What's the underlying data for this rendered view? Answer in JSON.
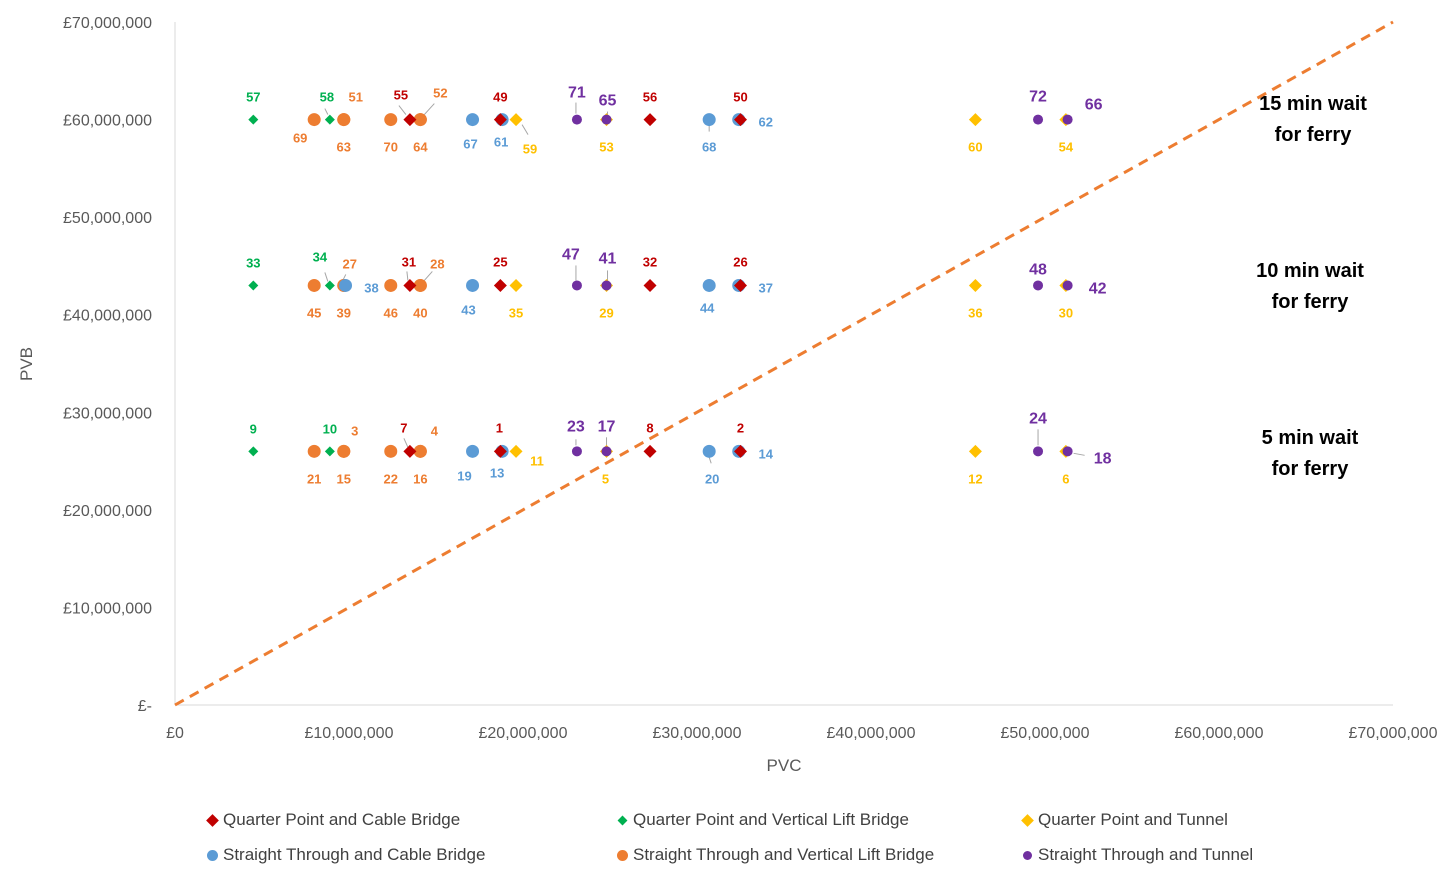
{
  "chart_data": {
    "type": "scatter",
    "title": "",
    "xlabel": "PVC",
    "ylabel": "PVB",
    "xlim": [
      0,
      70000000
    ],
    "ylim": [
      0,
      70000000
    ],
    "x_ticks": [
      "£0",
      "£10,000,000",
      "£20,000,000",
      "£30,000,000",
      "£40,000,000",
      "£50,000,000",
      "£60,000,000",
      "£70,000,000"
    ],
    "y_ticks": [
      "£-",
      "£10,000,000",
      "£20,000,000",
      "£30,000,000",
      "£40,000,000",
      "£50,000,000",
      "£60,000,000",
      "£70,000,000"
    ],
    "grid": false,
    "legend_position": "bottom",
    "reference_line": {
      "style": "dashed",
      "color": "#ED7D31",
      "from": [
        0,
        0
      ],
      "to": [
        70000000,
        70000000
      ]
    },
    "annotations": [
      {
        "text_line1": "15 min wait",
        "text_line2": "for ferry",
        "y": 60000000
      },
      {
        "text_line1": "10 min wait",
        "text_line2": "for ferry",
        "y": 43000000
      },
      {
        "text_line1": "5 min wait",
        "text_line2": "for ferry",
        "y": 26000000
      }
    ],
    "series": [
      {
        "name": "Quarter Point and Cable Bridge",
        "marker": "diamond",
        "color": "#C00000",
        "label_color": "#C00000",
        "points": [
          {
            "label": "55",
            "x": 13500000,
            "y": 60000000
          },
          {
            "label": "49",
            "x": 18700000,
            "y": 60000000
          },
          {
            "label": "56",
            "x": 27300000,
            "y": 60000000
          },
          {
            "label": "50",
            "x": 32500000,
            "y": 60000000
          },
          {
            "label": "31",
            "x": 13500000,
            "y": 43000000
          },
          {
            "label": "25",
            "x": 18700000,
            "y": 43000000
          },
          {
            "label": "32",
            "x": 27300000,
            "y": 43000000
          },
          {
            "label": "26",
            "x": 32500000,
            "y": 43000000
          },
          {
            "label": "7",
            "x": 13500000,
            "y": 26000000
          },
          {
            "label": "1",
            "x": 18700000,
            "y": 26000000
          },
          {
            "label": "8",
            "x": 27300000,
            "y": 26000000
          },
          {
            "label": "2",
            "x": 32500000,
            "y": 26000000
          }
        ]
      },
      {
        "name": "Quarter Point and Vertical Lift Bridge",
        "marker": "diamond-small",
        "color": "#00B050",
        "label_color": "#00B050",
        "points": [
          {
            "label": "57",
            "x": 4500000,
            "y": 60000000
          },
          {
            "label": "58",
            "x": 8900000,
            "y": 60000000
          },
          {
            "label": "33",
            "x": 4500000,
            "y": 43000000
          },
          {
            "label": "34",
            "x": 8900000,
            "y": 43000000
          },
          {
            "label": "9",
            "x": 4500000,
            "y": 26000000
          },
          {
            "label": "10",
            "x": 8900000,
            "y": 26000000
          }
        ]
      },
      {
        "name": "Quarter Point and Tunnel",
        "marker": "diamond",
        "color": "#FFC000",
        "label_color": "#FFC000",
        "points": [
          {
            "label": "59",
            "x": 19600000,
            "y": 60000000
          },
          {
            "label": "53",
            "x": 24800000,
            "y": 60000000
          },
          {
            "label": "60",
            "x": 46000000,
            "y": 60000000
          },
          {
            "label": "54",
            "x": 51200000,
            "y": 60000000
          },
          {
            "label": "35",
            "x": 19600000,
            "y": 43000000
          },
          {
            "label": "29",
            "x": 24800000,
            "y": 43000000
          },
          {
            "label": "36",
            "x": 46000000,
            "y": 43000000
          },
          {
            "label": "30",
            "x": 51200000,
            "y": 43000000
          },
          {
            "label": "11",
            "x": 19600000,
            "y": 26000000
          },
          {
            "label": "5",
            "x": 24800000,
            "y": 26000000
          },
          {
            "label": "12",
            "x": 46000000,
            "y": 26000000
          },
          {
            "label": "6",
            "x": 51200000,
            "y": 26000000
          }
        ]
      },
      {
        "name": "Straight Through and Cable Bridge",
        "marker": "circle",
        "color": "#5B9BD5",
        "label_color": "#5B9BD5",
        "points": [
          {
            "label": "67",
            "x": 17100000,
            "y": 60000000
          },
          {
            "label": "61",
            "x": 18800000,
            "y": 60000000
          },
          {
            "label": "68",
            "x": 30700000,
            "y": 60000000
          },
          {
            "label": "62",
            "x": 32400000,
            "y": 60000000
          },
          {
            "label": "43",
            "x": 17100000,
            "y": 43000000
          },
          {
            "label": "38",
            "x": 9800000,
            "y": 43000000
          },
          {
            "label": "44",
            "x": 30700000,
            "y": 43000000
          },
          {
            "label": "37",
            "x": 32400000,
            "y": 43000000
          },
          {
            "label": "19",
            "x": 17100000,
            "y": 26000000
          },
          {
            "label": "13",
            "x": 18800000,
            "y": 26000000
          },
          {
            "label": "20",
            "x": 30700000,
            "y": 26000000
          },
          {
            "label": "14",
            "x": 32400000,
            "y": 26000000
          }
        ]
      },
      {
        "name": "Straight Through and Vertical Lift Bridge",
        "marker": "circle",
        "color": "#ED7D31",
        "label_color": "#ED7D31",
        "points": [
          {
            "label": "69",
            "x": 8000000,
            "y": 60000000
          },
          {
            "label": "63",
            "x": 9700000,
            "y": 60000000
          },
          {
            "label": "70",
            "x": 12400000,
            "y": 60000000
          },
          {
            "label": "64",
            "x": 14100000,
            "y": 60000000
          },
          {
            "label": "45",
            "x": 8000000,
            "y": 43000000
          },
          {
            "label": "39",
            "x": 9700000,
            "y": 43000000
          },
          {
            "label": "46",
            "x": 12400000,
            "y": 43000000
          },
          {
            "label": "40",
            "x": 14100000,
            "y": 43000000
          },
          {
            "label": "21",
            "x": 8000000,
            "y": 26000000
          },
          {
            "label": "15",
            "x": 9700000,
            "y": 26000000
          },
          {
            "label": "22",
            "x": 12400000,
            "y": 26000000
          },
          {
            "label": "16",
            "x": 14100000,
            "y": 26000000
          },
          {
            "label": "51",
            "x": 9700000,
            "y": 60000000
          },
          {
            "label": "27",
            "x": 9700000,
            "y": 43000000
          },
          {
            "label": "3",
            "x": 9700000,
            "y": 26000000
          },
          {
            "label": "52",
            "x": 14100000,
            "y": 60000000
          },
          {
            "label": "28",
            "x": 14100000,
            "y": 43000000
          },
          {
            "label": "4",
            "x": 14100000,
            "y": 26000000
          }
        ]
      },
      {
        "name": "Straight Through and Tunnel",
        "marker": "circle-small",
        "color": "#7030A0",
        "label_color": "#7030A0",
        "points": [
          {
            "label": "71",
            "x": 23100000,
            "y": 60000000
          },
          {
            "label": "65",
            "x": 24800000,
            "y": 60000000
          },
          {
            "label": "72",
            "x": 49600000,
            "y": 60000000
          },
          {
            "label": "66",
            "x": 51300000,
            "y": 60000000
          },
          {
            "label": "47",
            "x": 23100000,
            "y": 43000000
          },
          {
            "label": "41",
            "x": 24800000,
            "y": 43000000
          },
          {
            "label": "48",
            "x": 49600000,
            "y": 43000000
          },
          {
            "label": "42",
            "x": 51300000,
            "y": 43000000
          },
          {
            "label": "23",
            "x": 23100000,
            "y": 26000000
          },
          {
            "label": "17",
            "x": 24800000,
            "y": 26000000
          },
          {
            "label": "24",
            "x": 49600000,
            "y": 26000000
          },
          {
            "label": "18",
            "x": 51300000,
            "y": 26000000
          }
        ]
      }
    ]
  }
}
